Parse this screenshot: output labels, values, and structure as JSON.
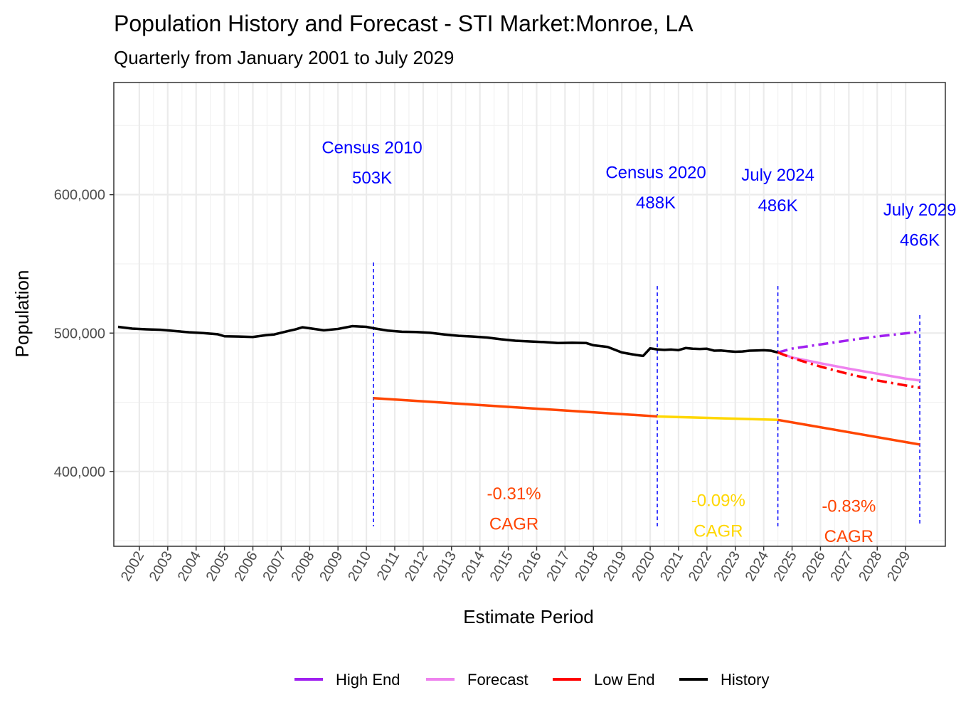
{
  "chart_data": {
    "type": "line",
    "title": "Population History and Forecast - STI Market:Monroe, LA",
    "subtitle": "Quarterly from January 2001 to July 2029",
    "xlabel": "Estimate Period",
    "ylabel": "Population",
    "xlim": [
      2001.1,
      2030.4
    ],
    "ylim": [
      346000,
      681000
    ],
    "x_ticks": [
      2002,
      2003,
      2004,
      2005,
      2006,
      2007,
      2008,
      2009,
      2010,
      2011,
      2012,
      2013,
      2014,
      2015,
      2016,
      2017,
      2018,
      2019,
      2020,
      2021,
      2022,
      2023,
      2024,
      2025,
      2026,
      2027,
      2028,
      2029
    ],
    "y_ticks": [
      {
        "value": 400000,
        "label": "400,000"
      },
      {
        "value": 500000,
        "label": "500,000"
      },
      {
        "value": 600000,
        "label": "600,000"
      }
    ],
    "grid": true,
    "legend_position": "bottom",
    "series": [
      {
        "name": "History",
        "color": "#000000",
        "dash": "solid",
        "x": [
          2001.25,
          2001.75,
          2002.25,
          2002.75,
          2003.25,
          2003.75,
          2004.25,
          2004.75,
          2005.0,
          2005.5,
          2006.0,
          2006.5,
          2006.75,
          2007.25,
          2007.5,
          2007.75,
          2008.0,
          2008.5,
          2009.0,
          2009.25,
          2009.5,
          2010.0,
          2010.25,
          2010.75,
          2011.25,
          2011.75,
          2012.25,
          2012.75,
          2013.25,
          2013.75,
          2014.25,
          2014.75,
          2015.25,
          2015.75,
          2016.25,
          2016.75,
          2017.25,
          2017.75,
          2018.0,
          2018.5,
          2018.75,
          2019.0,
          2019.5,
          2019.75,
          2020.0,
          2020.25,
          2020.5,
          2020.75,
          2021.0,
          2021.25,
          2021.5,
          2021.75,
          2022.0,
          2022.25,
          2022.5,
          2022.75,
          2023.0,
          2023.25,
          2023.5,
          2023.75,
          2024.0,
          2024.25,
          2024.5
        ],
        "values": [
          504500,
          503200,
          502700,
          502400,
          501500,
          500600,
          500000,
          499200,
          497700,
          497500,
          497200,
          498600,
          499000,
          501500,
          502700,
          504200,
          503500,
          502000,
          503000,
          504000,
          505000,
          504500,
          503500,
          501800,
          501000,
          500800,
          500200,
          499000,
          498000,
          497500,
          496800,
          495500,
          494500,
          494000,
          493500,
          492800,
          493000,
          492800,
          491200,
          490000,
          488000,
          486000,
          484200,
          483500,
          489000,
          488200,
          487900,
          488100,
          487700,
          489200,
          488700,
          488500,
          488700,
          487300,
          487400,
          486900,
          486500,
          486700,
          487300,
          487400,
          487600,
          487300,
          486000
        ]
      },
      {
        "name": "High End",
        "color": "#a020f0",
        "dash": "dashdot",
        "x": [
          2024.5,
          2025.0,
          2026.0,
          2027.0,
          2028.0,
          2029.0,
          2029.5
        ],
        "values": [
          486000,
          488800,
          491800,
          494800,
          497600,
          499800,
          501000
        ]
      },
      {
        "name": "Forecast",
        "color": "#ee82ee",
        "dash": "solid",
        "x": [
          2024.5,
          2025.0,
          2026.0,
          2027.0,
          2028.0,
          2029.0,
          2029.5
        ],
        "values": [
          486000,
          482400,
          478200,
          474300,
          470700,
          467100,
          465800
        ]
      },
      {
        "name": "Low End",
        "color": "#ff0000",
        "dash": "dashdot",
        "x": [
          2024.5,
          2025.0,
          2026.0,
          2027.0,
          2028.0,
          2029.0,
          2029.5
        ],
        "values": [
          486000,
          482000,
          475800,
          470400,
          465800,
          462200,
          460500
        ]
      }
    ],
    "cagr_lines": [
      {
        "x": [
          2010.25,
          2020.25
        ],
        "values": [
          453000,
          439800
        ],
        "color": "#ff4500"
      },
      {
        "x": [
          2020.25,
          2024.5
        ],
        "values": [
          439800,
          437300
        ],
        "color": "#ffd700"
      },
      {
        "x": [
          2024.5,
          2029.5
        ],
        "values": [
          437300,
          419500
        ],
        "color": "#ff4500"
      }
    ],
    "vlines": [
      {
        "x": 2010.25,
        "top": 551000
      },
      {
        "x": 2020.25,
        "top": 534000
      },
      {
        "x": 2024.5,
        "top": 534000
      },
      {
        "x": 2029.5,
        "top": 513000
      }
    ],
    "annotations": [
      {
        "x": 2010.2,
        "y": 630000,
        "text": "Census 2010",
        "color": "#0000ff"
      },
      {
        "x": 2010.2,
        "y": 608000,
        "text": "503K",
        "color": "#0000ff"
      },
      {
        "x": 2020.2,
        "y": 612000,
        "text": "Census 2020",
        "color": "#0000ff"
      },
      {
        "x": 2020.2,
        "y": 590000,
        "text": "488K",
        "color": "#0000ff"
      },
      {
        "x": 2024.5,
        "y": 610000,
        "text": "July 2024",
        "color": "#0000ff"
      },
      {
        "x": 2024.5,
        "y": 588000,
        "text": "486K",
        "color": "#0000ff"
      },
      {
        "x": 2029.5,
        "y": 585000,
        "text": "July 2029",
        "color": "#0000ff"
      },
      {
        "x": 2029.5,
        "y": 563000,
        "text": "466K",
        "color": "#0000ff"
      },
      {
        "x": 2015.2,
        "y": 380000,
        "text": "-0.31%",
        "color": "#ff4500"
      },
      {
        "x": 2015.2,
        "y": 358000,
        "text": " CAGR",
        "color": "#ff4500"
      },
      {
        "x": 2022.4,
        "y": 375000,
        "text": "-0.09%",
        "color": "#ffd700"
      },
      {
        "x": 2022.4,
        "y": 353000,
        "text": " CAGR",
        "color": "#ffd700"
      },
      {
        "x": 2027.0,
        "y": 371000,
        "text": "-0.83%",
        "color": "#ff4500"
      },
      {
        "x": 2027.0,
        "y": 349000,
        "text": " CAGR",
        "color": "#ff4500"
      }
    ],
    "legend": [
      {
        "name": "High End",
        "color": "#a020f0"
      },
      {
        "name": "Forecast",
        "color": "#ee82ee"
      },
      {
        "name": "Low End",
        "color": "#ff0000"
      },
      {
        "name": "History",
        "color": "#000000"
      }
    ]
  }
}
